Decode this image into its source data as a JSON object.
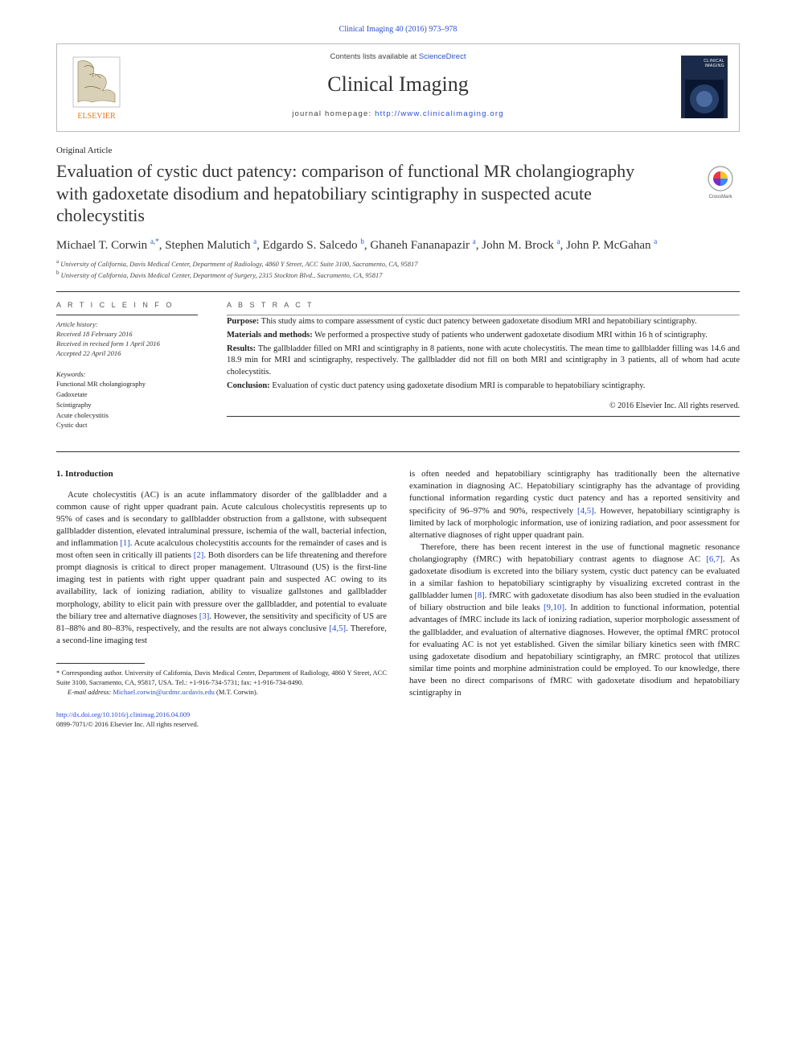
{
  "top_citation": "Clinical Imaging 40 (2016) 973–978",
  "header": {
    "contents_prefix": "Contents lists available at ",
    "contents_link": "ScienceDirect",
    "journal_name": "Clinical Imaging",
    "homepage_prefix": "journal homepage: ",
    "homepage_url": "http://www.clinicalimaging.org",
    "cover_label": "CLINICAL IMAGING"
  },
  "article_type": "Original Article",
  "title": "Evaluation of cystic duct patency: comparison of functional MR cholangiography with gadoxetate disodium and hepatobiliary scintigraphy in suspected acute cholecystitis",
  "crossmark_label": "CrossMark",
  "authors_html": "Michael T. Corwin <sup>a,*</sup>, Stephen Malutich <sup>a</sup>, Edgardo S. Salcedo <sup>b</sup>, Ghaneh Fananapazir <sup>a</sup>, John M. Brock <sup>a</sup>, John P. McGahan <sup>a</sup>",
  "affiliations": [
    {
      "marker": "a",
      "text": "University of California, Davis Medical Center, Department of Radiology, 4860 Y Street, ACC Suite 3100, Sacramento, CA, 95817"
    },
    {
      "marker": "b",
      "text": "University of California, Davis Medical Center, Department of Surgery, 2315 Stockton Blvd., Sacramento, CA, 95817"
    }
  ],
  "info_label": "A R T I C L E   I N F O",
  "abstract_label": "A B S T R A C T",
  "history": {
    "label": "Article history:",
    "received": "Received 18 February 2016",
    "revised": "Received in revised form 1 April 2016",
    "accepted": "Accepted 22 April 2016"
  },
  "keywords_label": "Keywords:",
  "keywords": [
    "Functional MR cholangiography",
    "Gadoxetate",
    "Scintigraphy",
    "Acute cholecystitis",
    "Cystic duct"
  ],
  "abstract": {
    "purpose_label": "Purpose:",
    "purpose": " This study aims to compare assessment of cystic duct patency between gadoxetate disodium MRI and hepatobiliary scintigraphy.",
    "methods_label": "Materials and methods:",
    "methods": " We performed a prospective study of patients who underwent gadoxetate disodium MRI within 16 h of scintigraphy.",
    "results_label": "Results:",
    "results": " The gallbladder filled on MRI and scintigraphy in 8 patients, none with acute cholecystitis. The mean time to gallbladder filling was 14.6 and 18.9 min for MRI and scintigraphy, respectively. The gallbladder did not fill on both MRI and scintigraphy in 3 patients, all of whom had acute cholecystitis.",
    "conclusion_label": "Conclusion:",
    "conclusion": " Evaluation of cystic duct patency using gadoxetate disodium MRI is comparable to hepatobiliary scintigraphy."
  },
  "copyright": "© 2016 Elsevier Inc. All rights reserved.",
  "section_heading": "1. Introduction",
  "body_left": "Acute cholecystitis (AC) is an acute inflammatory disorder of the gallbladder and a common cause of right upper quadrant pain. Acute calculous cholecystitis represents up to 95% of cases and is secondary to gallbladder obstruction from a gallstone, with subsequent gallbladder distention, elevated intraluminal pressure, ischemia of the wall, bacterial infection, and inflammation <span class=\"ref\">[1]</span>. Acute acalculous cholecystitis accounts for the remainder of cases and is most often seen in critically ill patients <span class=\"ref\">[2]</span>. Both disorders can be life threatening and therefore prompt diagnosis is critical to direct proper management. Ultrasound (US) is the first-line imaging test in patients with right upper quadrant pain and suspected AC owing to its availability, lack of ionizing radiation, ability to visualize gallstones and gallbladder morphology, ability to elicit pain with pressure over the gallbladder, and potential to evaluate the biliary tree and alternative diagnoses <span class=\"ref\">[3]</span>. However, the sensitivity and specificity of US are 81–88% and 80–83%, respectively, and the results are not always conclusive <span class=\"ref\">[4,5]</span>. Therefore, a second-line imaging test",
  "body_right": "is often needed and hepatobiliary scintigraphy has traditionally been the alternative examination in diagnosing AC. Hepatobiliary scintigraphy has the advantage of providing functional information regarding cystic duct patency and has a reported sensitivity and specificity of 96–97% and 90%, respectively <span class=\"ref\">[4,5]</span>. However, hepatobiliary scintigraphy is limited by lack of morphologic information, use of ionizing radiation, and poor assessment for alternative diagnoses of right upper quadrant pain.",
  "body_right_2": "Therefore, there has been recent interest in the use of functional magnetic resonance cholangiography (fMRC) with hepatobiliary contrast agents to diagnose AC <span class=\"ref\">[6,7]</span>. As gadoxetate disodium is excreted into the biliary system, cystic duct patency can be evaluated in a similar fashion to hepatobiliary scintigraphy by visualizing excreted contrast in the gallbladder lumen <span class=\"ref\">[8]</span>. fMRC with gadoxetate disodium has also been studied in the evaluation of biliary obstruction and bile leaks <span class=\"ref\">[9,10]</span>. In addition to functional information, potential advantages of fMRC include its lack of ionizing radiation, superior morphologic assessment of the gallbladder, and evaluation of alternative diagnoses. However, the optimal fMRC protocol for evaluating AC is not yet established. Given the similar biliary kinetics seen with fMRC using gadoxetate disodium and hepatobiliary scintigraphy, an fMRC protocol that utilizes similar time points and morphine administration could be employed. To our knowledge, there have been no direct comparisons of fMRC with gadoxetate disodium and hepatobiliary scintigraphy in",
  "footnote": {
    "marker": "*",
    "text": " Corresponding author. University of California, Davis Medical Center, Department of Radiology, 4860 Y Street, ACC Suite 3100, Sacramento, CA, 95817, USA. Tel.: +1-916-734-5731; fax: +1-916-734-8490.",
    "email_label": "E-mail address: ",
    "email": "Michael.corwin@ucdmc.ucdavis.edu",
    "email_suffix": " (M.T. Corwin)."
  },
  "doi": {
    "url": "http://dx.doi.org/10.1016/j.clinimag.2016.04.009",
    "issn_line": "0899-7071/© 2016 Elsevier Inc. All rights reserved."
  },
  "colors": {
    "link": "#2a4fd0",
    "text": "#222222",
    "rule": "#333333",
    "elsevier_orange": "#ec7a08",
    "cover_bg": "#1a2a4a"
  }
}
